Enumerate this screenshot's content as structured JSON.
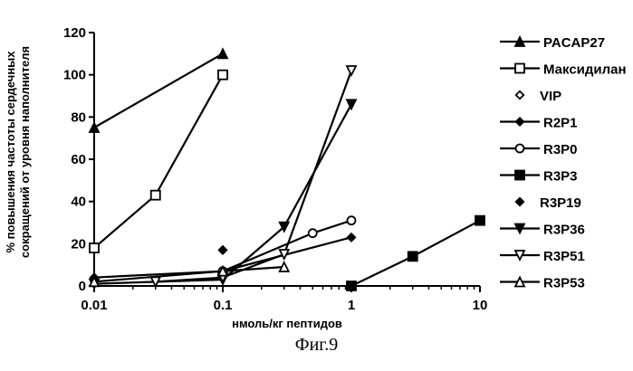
{
  "caption": "Фиг.9",
  "chart_data": {
    "type": "line",
    "x_scale": "log",
    "xlim": [
      0.01,
      10
    ],
    "ylim": [
      0,
      120
    ],
    "xticks": [
      0.01,
      0.1,
      1,
      10
    ],
    "xtick_labels": [
      "0.01",
      "0.1",
      "1",
      "10"
    ],
    "yticks": [
      0,
      20,
      40,
      60,
      80,
      100,
      120
    ],
    "xlabel": "нмоль/кг пептидов",
    "ylabel": [
      "% повышения частоты сердечных",
      "сокращений от уровня наполнителя"
    ],
    "legend_position": "right",
    "series": [
      {
        "name": "PACAP27",
        "marker": "triangle-filled",
        "x": [
          0.01,
          0.1
        ],
        "y": [
          75,
          110
        ]
      },
      {
        "name": "Максидилан",
        "marker": "square-open",
        "x": [
          0.01,
          0.03,
          0.1
        ],
        "y": [
          18,
          43,
          100
        ]
      },
      {
        "name": "VIP",
        "marker": "diamond-open",
        "x": [
          0.1
        ],
        "y": [
          17
        ]
      },
      {
        "name": "R2P1",
        "marker": "diamond-filled",
        "x": [
          0.01,
          0.1,
          1
        ],
        "y": [
          4,
          7,
          23
        ]
      },
      {
        "name": "R3P0",
        "marker": "circle-open",
        "x": [
          0.1,
          0.5,
          1
        ],
        "y": [
          7,
          25,
          31
        ]
      },
      {
        "name": "R3P3",
        "marker": "square-filled",
        "x": [
          1,
          3,
          10
        ],
        "y": [
          0,
          14,
          31
        ]
      },
      {
        "name": "R3P19",
        "marker": "diamond-filled",
        "x": [
          0.1
        ],
        "y": [
          17
        ]
      },
      {
        "name": "R3P36",
        "marker": "triangle-down-filled",
        "x": [
          0.01,
          0.1,
          0.3,
          1
        ],
        "y": [
          1,
          3,
          28,
          86
        ]
      },
      {
        "name": "R3P51",
        "marker": "triangle-down-open",
        "x": [
          0.03,
          0.1,
          0.3,
          1
        ],
        "y": [
          2,
          4,
          15,
          102
        ]
      },
      {
        "name": "R3P53",
        "marker": "triangle-open",
        "x": [
          0.01,
          0.1,
          0.3
        ],
        "y": [
          2,
          7,
          9
        ]
      }
    ]
  }
}
